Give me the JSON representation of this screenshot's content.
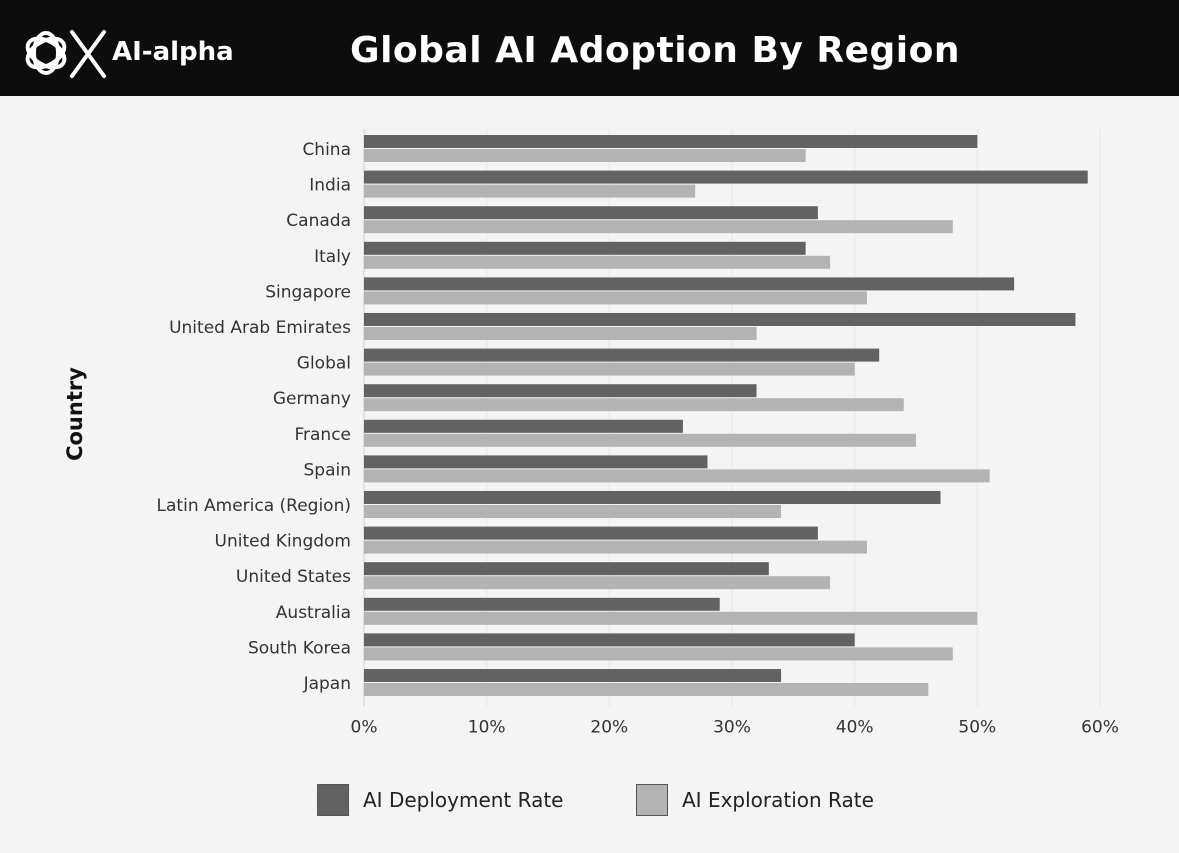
{
  "header": {
    "brand": "AI-alpha",
    "title": "Global AI Adoption By Region",
    "logo_icon": "openai-knot-logo-icon"
  },
  "colors": {
    "deployment": "#626262",
    "exploration": "#b3b3b3",
    "header_bg": "#0d0d0d",
    "background": "#f4f4f4"
  },
  "chart_data": {
    "type": "bar",
    "orientation": "horizontal",
    "title": "Global AI Adoption By Region",
    "xlabel": "",
    "ylabel": "Country",
    "xlim": [
      0,
      60
    ],
    "x_ticks": [
      "0%",
      "10%",
      "20%",
      "30%",
      "40%",
      "50%",
      "60%"
    ],
    "grid": false,
    "legend_position": "bottom",
    "categories": [
      "China",
      "India",
      "Canada",
      "Italy",
      "Singapore",
      "United Arab Emirates",
      "Global",
      "Germany",
      "France",
      "Spain",
      "Latin America (Region)",
      "United Kingdom",
      "United States",
      "Australia",
      "South Korea",
      "Japan"
    ],
    "series": [
      {
        "name": "AI Deployment Rate",
        "values": [
          50,
          59,
          37,
          36,
          53,
          58,
          42,
          32,
          26,
          28,
          47,
          37,
          33,
          29,
          40,
          34
        ]
      },
      {
        "name": "AI Exploration Rate",
        "values": [
          36,
          27,
          48,
          38,
          41,
          32,
          40,
          44,
          45,
          51,
          34,
          41,
          38,
          50,
          48,
          46
        ]
      }
    ]
  }
}
